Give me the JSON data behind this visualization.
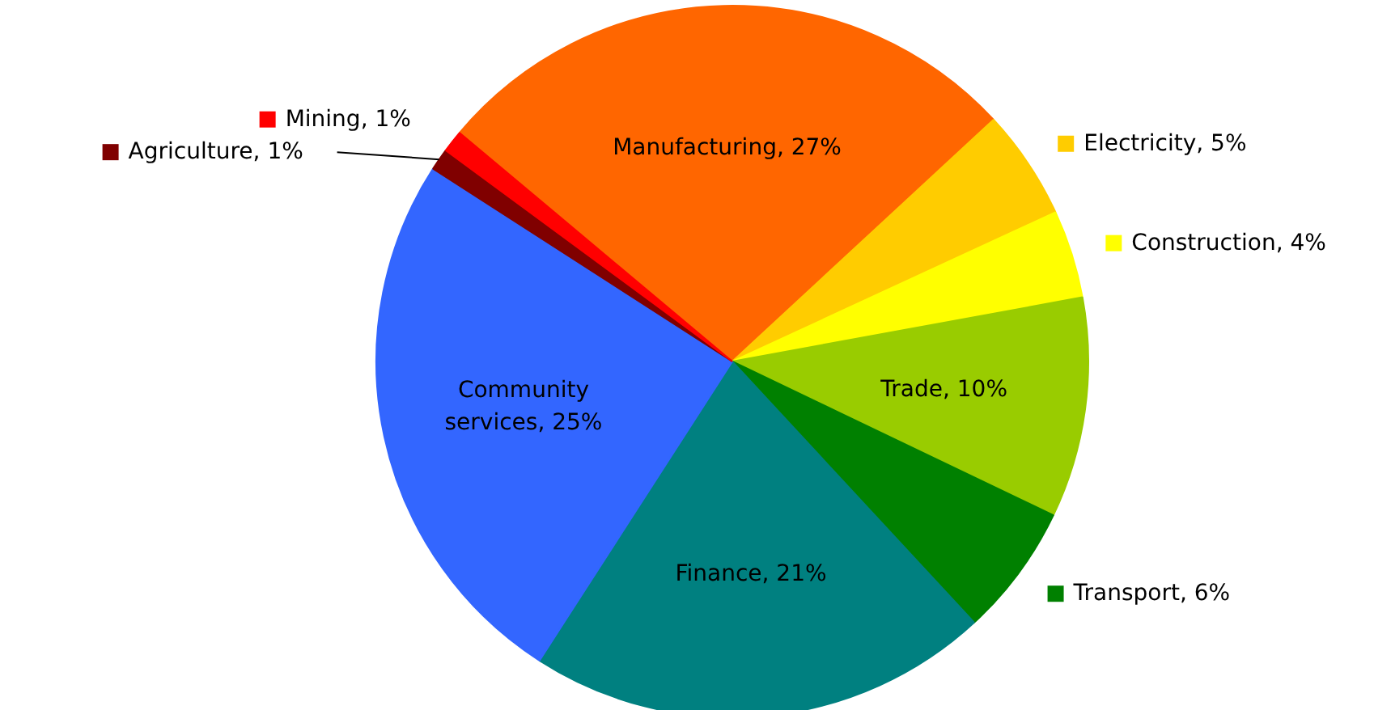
{
  "chart_data": {
    "type": "pie",
    "categories": [
      "Manufacturing",
      "Electricity",
      "Construction",
      "Trade",
      "Transport",
      "Finance",
      "Community services",
      "Agriculture",
      "Mining"
    ],
    "values": [
      27,
      5,
      4,
      10,
      6,
      21,
      25,
      1,
      1
    ],
    "value_labels": [
      "27%",
      "5%",
      "4%",
      "10%",
      "6%",
      "21%",
      "25%",
      "1%",
      "1%"
    ],
    "legend": true,
    "colors": [
      "#ff6600",
      "#ffcc00",
      "#ffff00",
      "#99cc00",
      "#008000",
      "#008080",
      "#3366ff",
      "#800000",
      "#ff0000"
    ]
  }
}
